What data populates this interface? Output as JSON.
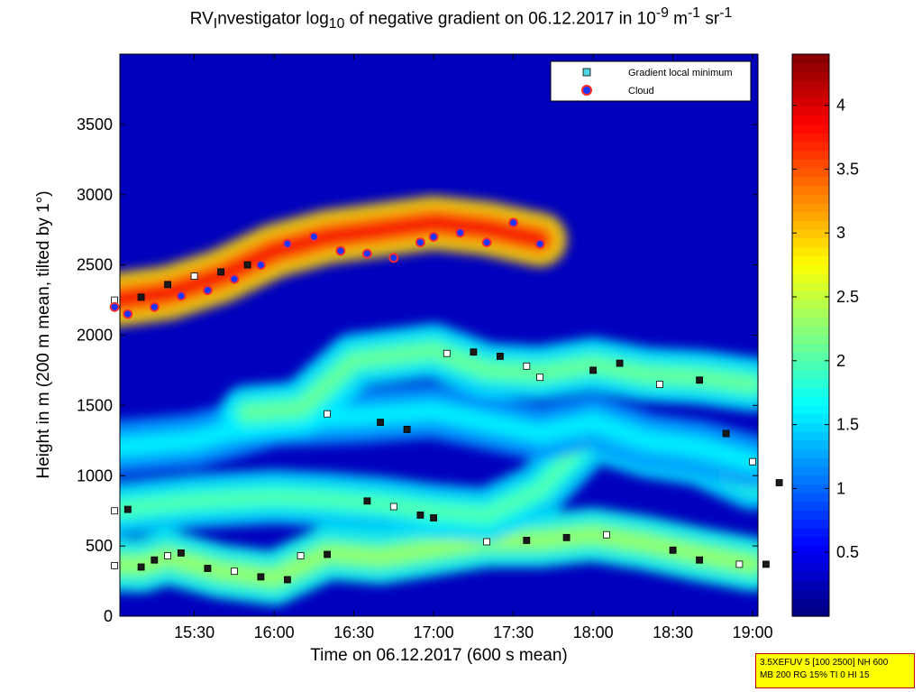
{
  "title": {
    "prefix": "RV",
    "sub1": "I",
    "mid": "nvestigator log",
    "sub2": "10",
    "rest": " of negative gradient on 06.12.2017 in 10",
    "exp1": "-9",
    "unit1": " m",
    "exp2": "-1",
    "unit2": " sr",
    "exp3": "-1"
  },
  "chart_data": {
    "type": "heatmap",
    "xlabel": "Time on 06.12.2017 (600 s mean)",
    "ylabel": "Height in m (200 m mean, tilted by 1°)",
    "x_ticks": [
      "15:30",
      "16:00",
      "16:30",
      "17:00",
      "17:30",
      "18:00",
      "18:30",
      "19:00"
    ],
    "x_range": [
      "15:02",
      "19:02"
    ],
    "y_ticks": [
      0,
      500,
      1000,
      1500,
      2000,
      2500,
      3000,
      3500
    ],
    "ylim": [
      0,
      4000
    ],
    "colorbar": {
      "ticks": [
        0.5,
        1,
        1.5,
        2,
        2.5,
        3,
        3.5,
        4
      ],
      "range": [
        0,
        4.4
      ],
      "colormap": "jet"
    },
    "legend": {
      "placement": "top-right",
      "entries": [
        {
          "label": "Gradient local minimum",
          "marker": "square",
          "color": "#4fd3e0"
        },
        {
          "label": "Cloud",
          "marker": "circle",
          "color": "#ff2a2a"
        }
      ]
    },
    "layers": [
      {
        "pts": [
          [
            "15:00",
            370
          ],
          [
            "15:10",
            360
          ],
          [
            "15:20",
            420
          ],
          [
            "15:40",
            320
          ],
          [
            "16:00",
            270
          ],
          [
            "16:20",
            450
          ],
          [
            "16:40",
            420
          ],
          [
            "17:00",
            480
          ],
          [
            "17:20",
            540
          ],
          [
            "17:40",
            540
          ],
          [
            "18:00",
            580
          ],
          [
            "18:20",
            520
          ],
          [
            "18:40",
            440
          ],
          [
            "19:00",
            370
          ]
        ],
        "value": 2.3
      },
      {
        "pts": [
          [
            "15:00",
            760
          ],
          [
            "15:30",
            820
          ],
          [
            "16:00",
            850
          ],
          [
            "16:20",
            830
          ],
          [
            "16:40",
            800
          ],
          [
            "17:00",
            750
          ],
          [
            "17:20",
            720
          ],
          [
            "17:40",
            900
          ],
          [
            "18:00",
            1300
          ],
          [
            "18:20",
            1180
          ],
          [
            "18:40",
            1120
          ],
          [
            "19:00",
            950
          ]
        ],
        "value": 2.0
      },
      {
        "pts": [
          [
            "15:00",
            1200
          ],
          [
            "15:30",
            1250
          ],
          [
            "16:00",
            1400
          ],
          [
            "16:30",
            1420
          ],
          [
            "17:00",
            1460
          ],
          [
            "17:20",
            1380
          ],
          [
            "17:40",
            1300
          ],
          [
            "18:00",
            1380
          ],
          [
            "18:20",
            1250
          ],
          [
            "18:40",
            1200
          ],
          [
            "19:00",
            1100
          ]
        ],
        "value": 1.6
      },
      {
        "pts": [
          [
            "15:50",
            1450
          ],
          [
            "16:10",
            1480
          ],
          [
            "16:30",
            1820
          ],
          [
            "17:00",
            1890
          ],
          [
            "17:20",
            1750
          ],
          [
            "17:40",
            1730
          ],
          [
            "18:00",
            1790
          ],
          [
            "18:20",
            1720
          ],
          [
            "18:40",
            1700
          ],
          [
            "19:00",
            1650
          ]
        ],
        "value": 2.1
      },
      {
        "pts": [
          [
            "15:00",
            2250
          ],
          [
            "15:20",
            2300
          ],
          [
            "15:40",
            2420
          ],
          [
            "16:00",
            2600
          ],
          [
            "16:20",
            2700
          ],
          [
            "16:40",
            2750
          ],
          [
            "17:00",
            2800
          ],
          [
            "17:20",
            2760
          ],
          [
            "17:40",
            2680
          ]
        ],
        "value": 3.9
      }
    ],
    "minima_series": [
      [
        [
          "15:00",
          750
        ],
        [
          "15:05",
          760
        ]
      ],
      [
        [
          "15:00",
          360
        ],
        [
          "15:10",
          350
        ],
        [
          "15:15",
          400
        ],
        [
          "15:20",
          430
        ],
        [
          "15:25",
          450
        ],
        [
          "15:35",
          340
        ],
        [
          "15:45",
          320
        ],
        [
          "15:55",
          280
        ],
        [
          "16:05",
          260
        ]
      ],
      [
        [
          "16:10",
          430
        ],
        [
          "16:20",
          440
        ],
        [
          "16:35",
          820
        ],
        [
          "16:45",
          780
        ],
        [
          "16:55",
          720
        ],
        [
          "17:00",
          700
        ]
      ],
      [
        [
          "16:20",
          1440
        ],
        [
          "16:40",
          1380
        ],
        [
          "16:50",
          1330
        ],
        [
          "17:05",
          1870
        ],
        [
          "17:15",
          1880
        ],
        [
          "17:25",
          1850
        ],
        [
          "17:35",
          1780
        ]
      ],
      [
        [
          "17:40",
          1700
        ],
        [
          "18:00",
          1750
        ],
        [
          "18:10",
          1800
        ],
        [
          "18:25",
          1650
        ],
        [
          "18:40",
          1680
        ],
        [
          "18:50",
          1300
        ],
        [
          "19:00",
          1100
        ],
        [
          "19:10",
          950
        ]
      ],
      [
        [
          "17:20",
          530
        ],
        [
          "17:35",
          540
        ],
        [
          "17:50",
          560
        ],
        [
          "18:05",
          580
        ],
        [
          "18:30",
          470
        ],
        [
          "18:40",
          400
        ],
        [
          "18:55",
          370
        ],
        [
          "19:05",
          370
        ]
      ],
      [
        [
          "15:00",
          2250
        ],
        [
          "15:10",
          2270
        ],
        [
          "15:20",
          2360
        ],
        [
          "15:30",
          2420
        ],
        [
          "15:40",
          2450
        ],
        [
          "15:50",
          2500
        ]
      ]
    ],
    "cloud_series": [
      [
        [
          "15:00",
          2200
        ],
        [
          "15:05",
          2150
        ],
        [
          "15:15",
          2200
        ],
        [
          "15:25",
          2280
        ],
        [
          "15:35",
          2320
        ],
        [
          "15:45",
          2400
        ],
        [
          "15:55",
          2500
        ],
        [
          "16:05",
          2650
        ],
        [
          "16:15",
          2700
        ],
        [
          "16:25",
          2600
        ],
        [
          "16:35",
          2580
        ],
        [
          "16:45",
          2550
        ],
        [
          "16:55",
          2660
        ],
        [
          "17:00",
          2700
        ],
        [
          "17:10",
          2730
        ],
        [
          "17:20",
          2660
        ],
        [
          "17:30",
          2800
        ],
        [
          "17:40",
          2650
        ]
      ]
    ]
  }
}
